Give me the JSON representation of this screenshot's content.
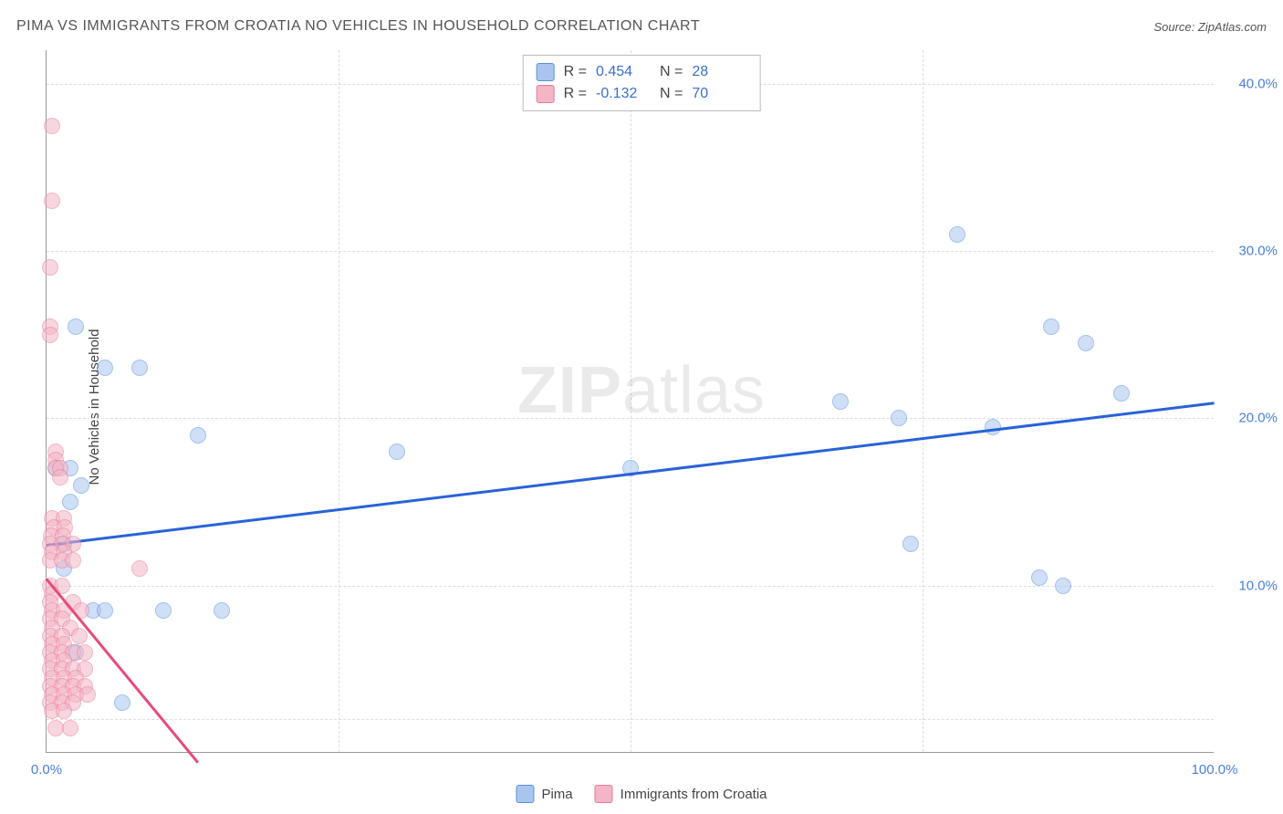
{
  "title": "PIMA VS IMMIGRANTS FROM CROATIA NO VEHICLES IN HOUSEHOLD CORRELATION CHART",
  "source": "Source: ZipAtlas.com",
  "watermark": {
    "zip": "ZIP",
    "atlas": "atlas"
  },
  "y_axis_label": "No Vehicles in Household",
  "chart": {
    "type": "scatter",
    "xlim": [
      0,
      100
    ],
    "ylim": [
      0,
      42
    ],
    "x_ticks": [
      {
        "val": 0,
        "label": "0.0%"
      },
      {
        "val": 50,
        "label": ""
      },
      {
        "val": 100,
        "label": "100.0%"
      }
    ],
    "y_ticks": [
      {
        "val": 10,
        "label": "10.0%"
      },
      {
        "val": 20,
        "label": "20.0%"
      },
      {
        "val": 30,
        "label": "30.0%"
      },
      {
        "val": 40,
        "label": "40.0%"
      }
    ],
    "y_grid_extra": [
      2
    ],
    "x_grid_extra": [
      25,
      75
    ],
    "background_color": "#ffffff",
    "grid_color": "#dddddd",
    "axis_color": "#999999",
    "tick_label_color": "#4a7fd8",
    "marker_radius": 9,
    "marker_opacity": 0.55,
    "series": [
      {
        "name": "Pima",
        "fill": "#a9c5ef",
        "stroke": "#5b8fe0",
        "points": [
          {
            "x": 2.5,
            "y": 25.5
          },
          {
            "x": 5,
            "y": 23
          },
          {
            "x": 8,
            "y": 23
          },
          {
            "x": 2,
            "y": 17
          },
          {
            "x": 0.8,
            "y": 17
          },
          {
            "x": 3,
            "y": 16
          },
          {
            "x": 2,
            "y": 15
          },
          {
            "x": 13,
            "y": 19
          },
          {
            "x": 30,
            "y": 18
          },
          {
            "x": 50,
            "y": 17
          },
          {
            "x": 68,
            "y": 21
          },
          {
            "x": 73,
            "y": 20
          },
          {
            "x": 81,
            "y": 19.5
          },
          {
            "x": 78,
            "y": 31
          },
          {
            "x": 86,
            "y": 25.5
          },
          {
            "x": 89,
            "y": 24.5
          },
          {
            "x": 92,
            "y": 21.5
          },
          {
            "x": 74,
            "y": 12.5
          },
          {
            "x": 85,
            "y": 10.5
          },
          {
            "x": 87,
            "y": 10
          },
          {
            "x": 4,
            "y": 8.5
          },
          {
            "x": 5,
            "y": 8.5
          },
          {
            "x": 10,
            "y": 8.5
          },
          {
            "x": 15,
            "y": 8.5
          },
          {
            "x": 6.5,
            "y": 3
          },
          {
            "x": 1.5,
            "y": 12.5
          },
          {
            "x": 1.5,
            "y": 11
          },
          {
            "x": 2.5,
            "y": 6
          }
        ],
        "trend": {
          "x1": 0,
          "y1": 12.5,
          "x2": 100,
          "y2": 21,
          "color": "#2962d9",
          "width": 2.5
        }
      },
      {
        "name": "Immigrants from Croatia",
        "fill": "#f4b6c6",
        "stroke": "#e87a9a",
        "points": [
          {
            "x": 0.5,
            "y": 37.5
          },
          {
            "x": 0.5,
            "y": 33
          },
          {
            "x": 0.3,
            "y": 29
          },
          {
            "x": 0.3,
            "y": 25.5
          },
          {
            "x": 0.3,
            "y": 25
          },
          {
            "x": 0.8,
            "y": 18
          },
          {
            "x": 0.8,
            "y": 17.5
          },
          {
            "x": 0.8,
            "y": 17
          },
          {
            "x": 1.2,
            "y": 17
          },
          {
            "x": 1.2,
            "y": 16.5
          },
          {
            "x": 0.5,
            "y": 14
          },
          {
            "x": 1.5,
            "y": 14
          },
          {
            "x": 0.6,
            "y": 13.5
          },
          {
            "x": 1.6,
            "y": 13.5
          },
          {
            "x": 0.4,
            "y": 13
          },
          {
            "x": 1.4,
            "y": 13
          },
          {
            "x": 0.3,
            "y": 12.5
          },
          {
            "x": 1.3,
            "y": 12.5
          },
          {
            "x": 2.3,
            "y": 12.5
          },
          {
            "x": 0.5,
            "y": 12
          },
          {
            "x": 1.5,
            "y": 12
          },
          {
            "x": 0.3,
            "y": 11.5
          },
          {
            "x": 1.3,
            "y": 11.5
          },
          {
            "x": 2.3,
            "y": 11.5
          },
          {
            "x": 8,
            "y": 11
          },
          {
            "x": 0.3,
            "y": 10
          },
          {
            "x": 1.3,
            "y": 10
          },
          {
            "x": 0.5,
            "y": 9.5
          },
          {
            "x": 0.3,
            "y": 9
          },
          {
            "x": 2.3,
            "y": 9
          },
          {
            "x": 0.5,
            "y": 8.5
          },
          {
            "x": 1.5,
            "y": 8.5
          },
          {
            "x": 3,
            "y": 8.5
          },
          {
            "x": 0.3,
            "y": 8
          },
          {
            "x": 1.3,
            "y": 8
          },
          {
            "x": 0.5,
            "y": 7.5
          },
          {
            "x": 2,
            "y": 7.5
          },
          {
            "x": 0.3,
            "y": 7
          },
          {
            "x": 1.3,
            "y": 7
          },
          {
            "x": 2.8,
            "y": 7
          },
          {
            "x": 0.5,
            "y": 6.5
          },
          {
            "x": 1.5,
            "y": 6.5
          },
          {
            "x": 0.3,
            "y": 6
          },
          {
            "x": 1.3,
            "y": 6
          },
          {
            "x": 2.3,
            "y": 6
          },
          {
            "x": 3.3,
            "y": 6
          },
          {
            "x": 0.5,
            "y": 5.5
          },
          {
            "x": 1.5,
            "y": 5.5
          },
          {
            "x": 0.3,
            "y": 5
          },
          {
            "x": 1.3,
            "y": 5
          },
          {
            "x": 2.3,
            "y": 5
          },
          {
            "x": 3.3,
            "y": 5
          },
          {
            "x": 0.5,
            "y": 4.5
          },
          {
            "x": 1.5,
            "y": 4.5
          },
          {
            "x": 2.5,
            "y": 4.5
          },
          {
            "x": 0.3,
            "y": 4
          },
          {
            "x": 1.3,
            "y": 4
          },
          {
            "x": 2.3,
            "y": 4
          },
          {
            "x": 3.3,
            "y": 4
          },
          {
            "x": 0.5,
            "y": 3.5
          },
          {
            "x": 1.5,
            "y": 3.5
          },
          {
            "x": 2.5,
            "y": 3.5
          },
          {
            "x": 3.5,
            "y": 3.5
          },
          {
            "x": 0.3,
            "y": 3
          },
          {
            "x": 1.3,
            "y": 3
          },
          {
            "x": 2.3,
            "y": 3
          },
          {
            "x": 0.5,
            "y": 2.5
          },
          {
            "x": 1.5,
            "y": 2.5
          },
          {
            "x": 0.8,
            "y": 1.5
          },
          {
            "x": 2,
            "y": 1.5
          }
        ],
        "trend": {
          "x1": 0,
          "y1": 10.5,
          "x2": 13,
          "y2": -0.5,
          "color": "#e84a7a",
          "width": 2.5
        }
      }
    ]
  },
  "stats": [
    {
      "series_index": 0,
      "r_label": "R =",
      "r": "0.454",
      "n_label": "N =",
      "n": "28"
    },
    {
      "series_index": 1,
      "r_label": "R =",
      "r": "-0.132",
      "n_label": "N =",
      "n": "70"
    }
  ],
  "legend": [
    {
      "series_index": 0,
      "label": "Pima"
    },
    {
      "series_index": 1,
      "label": "Immigrants from Croatia"
    }
  ]
}
